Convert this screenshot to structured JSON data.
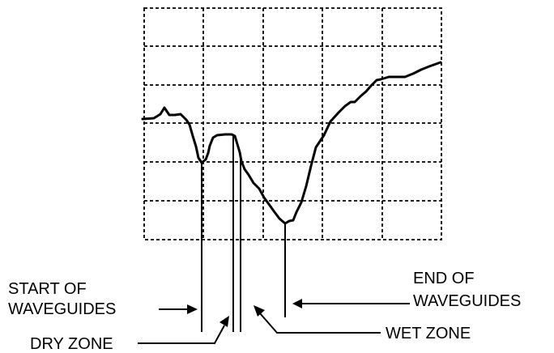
{
  "labels": {
    "start_line1": "START OF",
    "start_line2": "WAVEGUIDES",
    "dry_zone": "DRY ZONE",
    "end_line1": "END OF",
    "end_line2": "WAVEGUIDES",
    "wet_zone": "WET ZONE"
  },
  "colors": {
    "ink": "#000000",
    "background": "#ffffff"
  }
}
